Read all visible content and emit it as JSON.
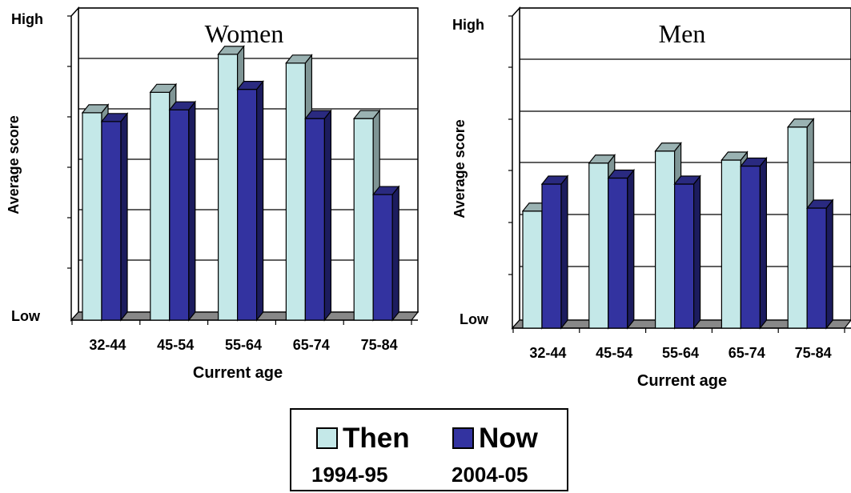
{
  "chart_data": [
    {
      "type": "bar",
      "title": "Women",
      "xlabel": "Current age",
      "ylabel": "Average score",
      "ytick_high": "High",
      "ytick_low": "Low",
      "categories": [
        "32-44",
        "45-54",
        "55-64",
        "65-74",
        "75-84"
      ],
      "ylim": [
        0,
        1
      ],
      "series": [
        {
          "name": "Then",
          "values": [
            0.71,
            0.78,
            0.91,
            0.88,
            0.69
          ]
        },
        {
          "name": "Now",
          "values": [
            0.68,
            0.72,
            0.79,
            0.69,
            0.43
          ]
        }
      ]
    },
    {
      "type": "bar",
      "title": "Men",
      "xlabel": "Current age",
      "ylabel": "Average score",
      "ytick_high": "High",
      "ytick_low": "Low",
      "categories": [
        "32-44",
        "45-54",
        "55-64",
        "65-74",
        "75-84"
      ],
      "ylim": [
        0,
        1
      ],
      "series": [
        {
          "name": "Then",
          "values": [
            0.39,
            0.55,
            0.59,
            0.56,
            0.67
          ]
        },
        {
          "name": "Now",
          "values": [
            0.48,
            0.5,
            0.48,
            0.54,
            0.4
          ]
        }
      ]
    }
  ],
  "legend": [
    {
      "name": "Then",
      "sub": "1994-95",
      "color": "#c4e8e8"
    },
    {
      "name": "Now",
      "sub": "2004-05",
      "color": "#3333a0"
    }
  ],
  "colors": {
    "then_front": "#c4e8e8",
    "then_side": "#7f9595",
    "then_top": "#9ab2b2",
    "now_front": "#3333a0",
    "now_side": "#1c1c5e",
    "now_top": "#2a2a80"
  }
}
